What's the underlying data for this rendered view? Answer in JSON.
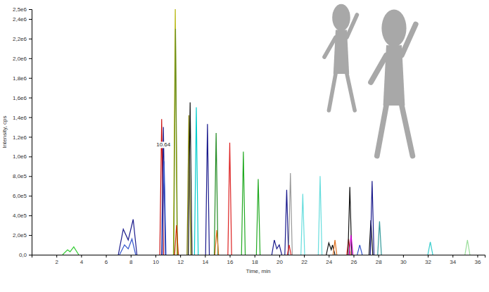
{
  "chart_data": {
    "type": "line",
    "x_label": "Time, min",
    "y_label": "Intensity, cps",
    "xlim": [
      0,
      36.6
    ],
    "ylim": [
      0,
      2500000
    ],
    "xticks": [
      2,
      4,
      6,
      8,
      10,
      12,
      14,
      16,
      18,
      20,
      22,
      24,
      26,
      28,
      30,
      32,
      34,
      36
    ],
    "yticks": [
      {
        "value": 0,
        "label": "0,0"
      },
      {
        "value": 200000,
        "label": "2,0e5"
      },
      {
        "value": 400000,
        "label": "4,0e5"
      },
      {
        "value": 600000,
        "label": "6,0e5"
      },
      {
        "value": 800000,
        "label": "8,0e5"
      },
      {
        "value": 1000000,
        "label": "1,0e6"
      },
      {
        "value": 1200000,
        "label": "1,2e6"
      },
      {
        "value": 1400000,
        "label": "1,4e6"
      },
      {
        "value": 1600000,
        "label": "1,6e6"
      },
      {
        "value": 1800000,
        "label": "1,8e6"
      },
      {
        "value": 2000000,
        "label": "2,0e6"
      },
      {
        "value": 2200000,
        "label": "2,2e6"
      },
      {
        "value": 2400000,
        "label": "2,4e6"
      },
      {
        "value": 2500000,
        "label": "2,5e6"
      }
    ],
    "grid": false,
    "annotations": [
      {
        "text": "10.64",
        "x": 10.64,
        "y": 1100000
      }
    ],
    "series": [
      {
        "color": "#33cc33",
        "x": [
          2.5,
          2.9,
          3.1,
          3.4,
          3.8
        ],
        "values": [
          0,
          50000,
          30000,
          80000,
          0
        ]
      },
      {
        "color": "#1a1a8c",
        "x": [
          7.0,
          7.4,
          7.8,
          8.2,
          8.5
        ],
        "values": [
          0,
          260000,
          150000,
          360000,
          0
        ]
      },
      {
        "color": "#3355cc",
        "x": [
          7.1,
          7.5,
          7.8,
          8.1,
          8.4
        ],
        "values": [
          0,
          100000,
          60000,
          160000,
          0
        ]
      },
      {
        "color": "#cc1111",
        "x": [
          10.35,
          10.5,
          10.65
        ],
        "values": [
          0,
          1380000,
          0
        ]
      },
      {
        "color": "#1a1a8c",
        "x": [
          10.5,
          10.64,
          10.8
        ],
        "values": [
          0,
          1300000,
          0
        ]
      },
      {
        "color": "#3355cc",
        "x": [
          10.55,
          10.7,
          10.85
        ],
        "values": [
          0,
          950000,
          0
        ]
      },
      {
        "color": "#b3b300",
        "x": [
          11.45,
          11.6,
          11.75
        ],
        "values": [
          0,
          2500000,
          0
        ]
      },
      {
        "color": "#6b8e23",
        "x": [
          11.48,
          11.62,
          11.78
        ],
        "values": [
          0,
          2300000,
          0
        ]
      },
      {
        "color": "#cc3300",
        "x": [
          11.55,
          11.7,
          11.85
        ],
        "values": [
          0,
          300000,
          0
        ]
      },
      {
        "color": "#808000",
        "x": [
          12.55,
          12.7,
          12.85
        ],
        "values": [
          0,
          1420000,
          0
        ]
      },
      {
        "color": "#111111",
        "x": [
          12.65,
          12.8,
          12.95
        ],
        "values": [
          0,
          1550000,
          0
        ]
      },
      {
        "color": "#00cccc",
        "x": [
          13.15,
          13.3,
          13.45
        ],
        "values": [
          0,
          1500000,
          0
        ]
      },
      {
        "color": "#1a1a8c",
        "x": [
          14.05,
          14.2,
          14.35
        ],
        "values": [
          0,
          1330000,
          0
        ]
      },
      {
        "color": "#228b22",
        "x": [
          14.75,
          14.9,
          15.05
        ],
        "values": [
          0,
          1240000,
          0
        ]
      },
      {
        "color": "#e07020",
        "x": [
          14.8,
          14.95,
          15.1
        ],
        "values": [
          0,
          250000,
          0
        ]
      },
      {
        "color": "#dd2222",
        "x": [
          15.85,
          16.0,
          16.15
        ],
        "values": [
          0,
          1140000,
          0
        ]
      },
      {
        "color": "#22aa22",
        "x": [
          16.95,
          17.1,
          17.25
        ],
        "values": [
          0,
          1050000,
          0
        ]
      },
      {
        "color": "#22aa22",
        "x": [
          18.15,
          18.3,
          18.45
        ],
        "values": [
          0,
          770000,
          0
        ]
      },
      {
        "color": "#1a1a8c",
        "x": [
          19.4,
          19.6,
          19.8,
          20.0,
          20.2
        ],
        "values": [
          0,
          150000,
          60000,
          100000,
          0
        ]
      },
      {
        "color": "#1a1a8c",
        "x": [
          20.45,
          20.6,
          20.75
        ],
        "values": [
          0,
          660000,
          0
        ]
      },
      {
        "color": "#999999",
        "x": [
          20.75,
          20.9,
          21.05
        ],
        "values": [
          0,
          830000,
          0
        ]
      },
      {
        "color": "#dd2222",
        "x": [
          20.65,
          20.8,
          20.95
        ],
        "values": [
          0,
          100000,
          0
        ]
      },
      {
        "color": "#66dddd",
        "x": [
          21.75,
          21.9,
          22.05
        ],
        "values": [
          0,
          620000,
          0
        ]
      },
      {
        "color": "#66dddd",
        "x": [
          23.15,
          23.3,
          23.45
        ],
        "values": [
          0,
          800000,
          0
        ]
      },
      {
        "color": "#111111",
        "x": [
          23.8,
          24.0,
          24.2,
          24.3,
          24.5
        ],
        "values": [
          0,
          120000,
          50000,
          100000,
          0
        ]
      },
      {
        "color": "#e07020",
        "x": [
          24.35,
          24.5,
          24.65
        ],
        "values": [
          0,
          150000,
          0
        ]
      },
      {
        "color": "#dd2222",
        "x": [
          25.45,
          25.6,
          25.75
        ],
        "values": [
          0,
          160000,
          0
        ]
      },
      {
        "color": "#111111",
        "x": [
          25.55,
          25.7,
          25.85
        ],
        "values": [
          0,
          690000,
          0
        ]
      },
      {
        "color": "#cc00cc",
        "x": [
          25.65,
          25.8,
          25.95
        ],
        "values": [
          0,
          200000,
          0
        ]
      },
      {
        "color": "#3355cc",
        "x": [
          26.3,
          26.5,
          26.7
        ],
        "values": [
          0,
          100000,
          0
        ]
      },
      {
        "color": "#111111",
        "x": [
          27.25,
          27.4,
          27.55
        ],
        "values": [
          0,
          350000,
          0
        ]
      },
      {
        "color": "#1a1a8c",
        "x": [
          27.35,
          27.5,
          27.65
        ],
        "values": [
          0,
          750000,
          0
        ]
      },
      {
        "color": "#339999",
        "x": [
          27.95,
          28.1,
          28.25
        ],
        "values": [
          0,
          340000,
          0
        ]
      },
      {
        "color": "#33cccc",
        "x": [
          32.0,
          32.2,
          32.4
        ],
        "values": [
          0,
          130000,
          0
        ]
      },
      {
        "color": "#99dd99",
        "x": [
          35.0,
          35.2,
          35.4
        ],
        "values": [
          0,
          150000,
          0
        ]
      }
    ]
  }
}
